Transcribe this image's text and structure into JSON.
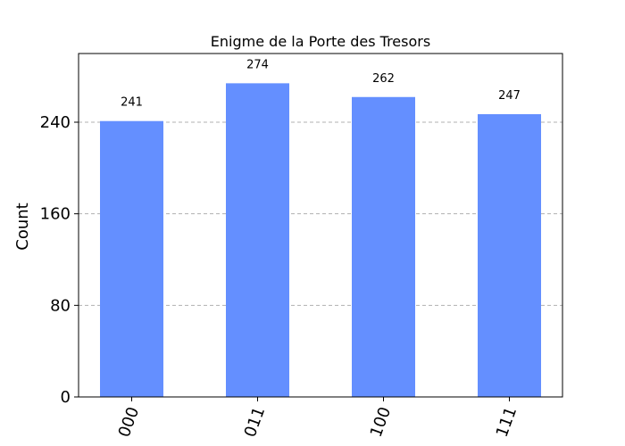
{
  "chart_data": {
    "type": "bar",
    "title": "Enigme de la Porte des Tresors",
    "xlabel": "",
    "ylabel": "Count",
    "categories": [
      "000",
      "011",
      "100",
      "111"
    ],
    "values": [
      241,
      274,
      262,
      247
    ],
    "ylim": [
      0,
      300
    ],
    "yticks": [
      0,
      80,
      160,
      240
    ],
    "grid": true,
    "bar_color": "#648fff"
  }
}
